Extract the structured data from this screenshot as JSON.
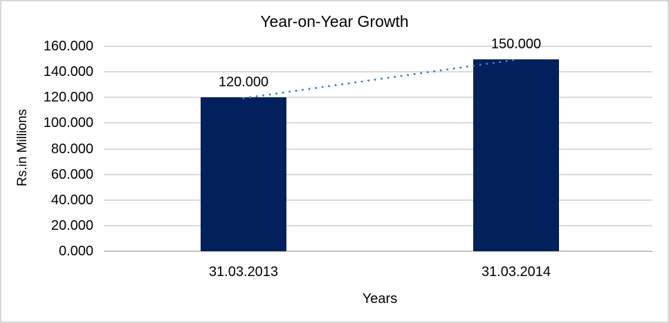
{
  "chart_data": {
    "type": "bar",
    "title": "Year-on-Year Growth",
    "xlabel": "Years",
    "ylabel": "Rs.in Millions",
    "categories": [
      "31.03.2013",
      "31.03.2014"
    ],
    "values": [
      120,
      150
    ],
    "data_labels": [
      "120.000",
      "150.000"
    ],
    "ylim": [
      0,
      160
    ],
    "y_tick_values": [
      0,
      20,
      40,
      60,
      80,
      100,
      120,
      140,
      160
    ],
    "y_tick_labels": [
      "0.000",
      "20.000",
      "40.000",
      "60.000",
      "80.000",
      "100.000",
      "120.000",
      "140.000",
      "160.000"
    ],
    "grid": true,
    "legend": "none",
    "trendline": {
      "type": "linear",
      "line_style": "dotted",
      "connects": [
        120,
        150
      ]
    },
    "colors": {
      "bar": "#02215C",
      "gridline": "#DADADA",
      "axis_line": "#C3C3C3",
      "trendline": "#4A7EBB",
      "text": "#000000",
      "chart_border": "#D7D7D7",
      "background": "#FFFFFF"
    }
  }
}
